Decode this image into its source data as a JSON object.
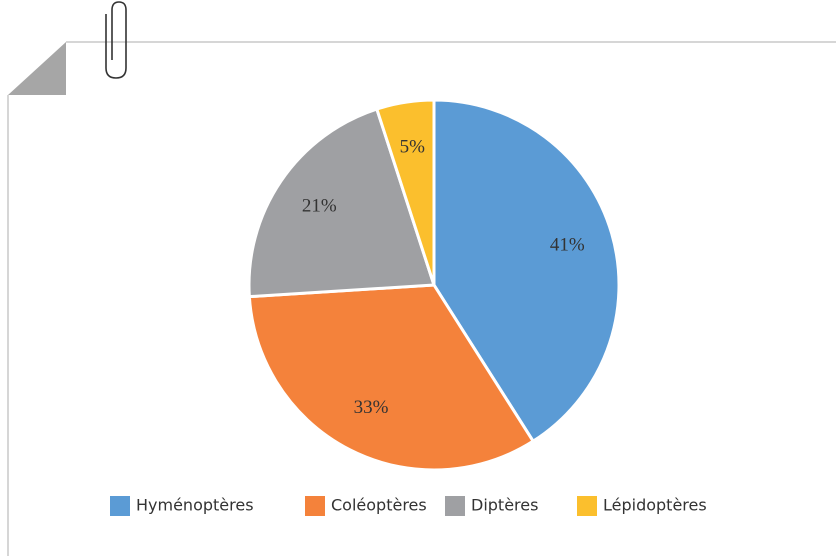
{
  "chart_data": {
    "type": "pie",
    "categories": [
      "Hyménoptères",
      "Coléoptères",
      "Diptères",
      "Lépidoptères"
    ],
    "values": [
      41,
      33,
      21,
      5
    ],
    "value_labels": [
      "41%",
      "33%",
      "21%",
      "5%"
    ],
    "colors": [
      "#5b9bd5",
      "#f4823b",
      "#9fa0a3",
      "#fbbf2d"
    ],
    "legend": "bottom"
  }
}
